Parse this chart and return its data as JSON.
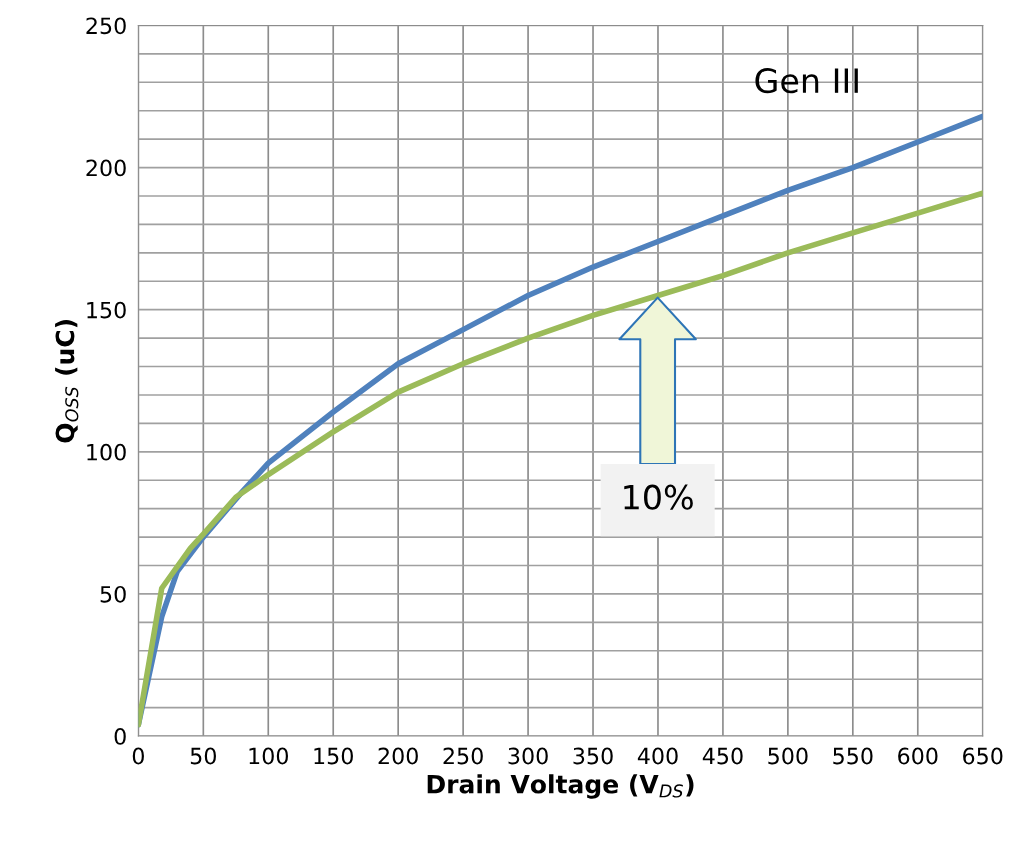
{
  "chart_data": {
    "type": "line",
    "xlabel": "Drain Voltage (V$_{DS}$)",
    "ylabel": "Q$_{OSS}$ (uC)",
    "xlim": [
      0,
      650
    ],
    "xticks": [
      0,
      50,
      100,
      150,
      200,
      250,
      300,
      350,
      400,
      450,
      500,
      550,
      600,
      650
    ],
    "ylim": [
      0,
      250
    ],
    "yticks": [
      0,
      {
        "value": 10,
        "label": null
      },
      {
        "value": 20,
        "label": null
      },
      {
        "value": 30,
        "label": null
      },
      {
        "value": 40,
        "label": null
      },
      50,
      {
        "value": 60,
        "label": null
      },
      {
        "value": 70,
        "label": null
      },
      {
        "value": 80,
        "label": null
      },
      {
        "value": 90,
        "label": null
      },
      100,
      {
        "value": 110,
        "label": null
      },
      {
        "value": 120,
        "label": null
      },
      {
        "value": 130,
        "label": null
      },
      {
        "value": 140,
        "label": null
      },
      150,
      {
        "value": 160,
        "label": null
      },
      {
        "value": 170,
        "label": null
      },
      {
        "value": 180,
        "label": null
      },
      {
        "value": 190,
        "label": null
      },
      200,
      {
        "value": 210,
        "label": null
      },
      {
        "value": 220,
        "label": null
      },
      {
        "value": 230,
        "label": null
      },
      {
        "value": 240,
        "label": null
      },
      250
    ],
    "grid": true,
    "marker": "none",
    "line_style": "solid",
    "series": [
      {
        "name": "Gen III",
        "color": "#4f81bd",
        "x": [
          0,
          18,
          30,
          50,
          80,
          100,
          150,
          200,
          250,
          300,
          350,
          400,
          450,
          500,
          550,
          600,
          650
        ],
        "values": [
          4,
          42,
          58,
          70,
          86,
          96,
          114,
          131,
          143,
          155,
          165,
          174,
          183,
          192,
          200,
          209,
          218
        ]
      },
      {
        "color": "#9bbb59",
        "x": [
          0,
          18,
          40,
          50,
          75,
          100,
          150,
          200,
          250,
          300,
          350,
          400,
          450,
          500,
          550,
          600,
          650
        ],
        "values": [
          4,
          52,
          66,
          71,
          84,
          92,
          107,
          121,
          131,
          140,
          148,
          155,
          162,
          170,
          177,
          184,
          191
        ]
      }
    ],
    "annotations": [
      "10%"
    ]
  }
}
